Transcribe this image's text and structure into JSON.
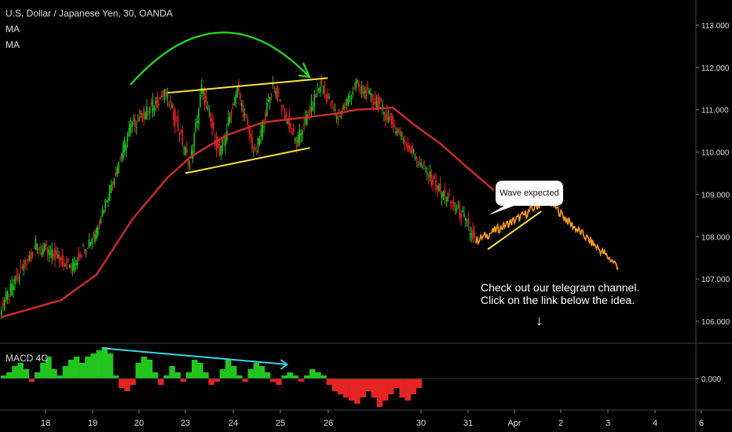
{
  "header": {
    "symbol_title": "U.S. Dollar / Japanese Yen, 30, OANDA",
    "indicator_1": "MA",
    "indicator_2": "MA",
    "lower_indicator": "MACD 4C"
  },
  "annotations": {
    "callout": "Wave expected",
    "note_line_1": "Check out our telegram channel.",
    "note_line_2": "Click on the link below the idea."
  },
  "colors": {
    "background": "#000000",
    "candle_up": "#22c41e",
    "candle_down": "#e52424",
    "moving_average": "#d42a2a",
    "trendlines": "#ffe53d",
    "arc_arrow": "#22dd22",
    "projection": "#ff9f1a",
    "macd_divergence_line": "#3ad6e8",
    "axis_text": "#dddddd"
  },
  "icons": {
    "down_arrow": "down-arrow-icon"
  },
  "chart_data": [
    {
      "type": "candlestick",
      "title": "U.S. Dollar / Japanese Yen, 30, OANDA",
      "x_tick_labels": [
        "18",
        "19",
        "20",
        "23",
        "24",
        "25",
        "26",
        "30",
        "31",
        "Apr",
        "2",
        "3",
        "4",
        "6"
      ],
      "y_tick_labels": [
        "113.000",
        "112.000",
        "111.000",
        "110.000",
        "109.000",
        "108.000",
        "107.000",
        "106.000"
      ],
      "ylim": [
        105.6,
        113.5
      ],
      "price_path": {
        "index": [
          0,
          6,
          12,
          16,
          22,
          28,
          32,
          34,
          37,
          40,
          43,
          46,
          50,
          54,
          57,
          60,
          64,
          70,
          74,
          78,
          80
        ],
        "close": [
          106.3,
          107.8,
          107.3,
          108.1,
          110.6,
          111.4,
          109.7,
          111.5,
          109.9,
          111.5,
          109.9,
          111.6,
          110.2,
          111.6,
          110.8,
          111.6,
          111.1,
          109.9,
          109.1,
          108.5,
          107.9
        ]
      },
      "moving_average": {
        "index": [
          0,
          10,
          16,
          22,
          28,
          32,
          38,
          44,
          50,
          56,
          60,
          66,
          70,
          74,
          78,
          83
        ],
        "value": [
          106.1,
          106.5,
          107.1,
          108.4,
          109.4,
          109.9,
          110.4,
          110.7,
          110.8,
          110.9,
          111.0,
          111.05,
          110.6,
          110.2,
          109.7,
          109.1
        ]
      },
      "projection": {
        "label": "Wave expected",
        "index": [
          80,
          88,
          92,
          96,
          100,
          104
        ],
        "value": [
          107.9,
          108.5,
          108.9,
          108.3,
          107.8,
          107.3
        ]
      },
      "trendlines": [
        {
          "from": [
            28,
            111.4
          ],
          "to": [
            55,
            111.75
          ]
        },
        {
          "from": [
            31,
            109.5
          ],
          "to": [
            52,
            110.1
          ]
        },
        {
          "from": [
            82,
            107.7
          ],
          "to": [
            91,
            108.6
          ]
        }
      ],
      "grid": false
    },
    {
      "type": "histogram",
      "title": "MACD 4C",
      "y_tick_labels": [
        "0.000"
      ],
      "values": [
        0.1,
        0.2,
        0.4,
        0.5,
        0.3,
        -0.1,
        0.2,
        0.5,
        0.7,
        0.3,
        0.1,
        0.4,
        0.6,
        0.7,
        0.5,
        0.7,
        0.8,
        0.9,
        1.0,
        0.8,
        0.1,
        -0.3,
        -0.4,
        -0.2,
        0.5,
        0.7,
        0.6,
        0.2,
        -0.2,
        0.1,
        0.4,
        0.2,
        -0.1,
        0.2,
        0.6,
        0.5,
        0.2,
        -0.2,
        -0.1,
        0.3,
        0.6,
        0.4,
        0.1,
        -0.1,
        0.3,
        0.5,
        0.4,
        0.2,
        -0.1,
        -0.2,
        0.1,
        0.2,
        0.1,
        -0.1,
        0.1,
        0.3,
        0.2,
        0.1,
        -0.2,
        -0.4,
        -0.5,
        -0.6,
        -0.7,
        -0.8,
        -0.6,
        -0.4,
        -0.6,
        -0.9,
        -0.7,
        -0.5,
        -0.3,
        -0.6,
        -0.7,
        -0.5,
        -0.3
      ],
      "divergence_line": {
        "from": [
          18,
          0.97
        ],
        "to": [
          51,
          0.45
        ]
      }
    }
  ]
}
